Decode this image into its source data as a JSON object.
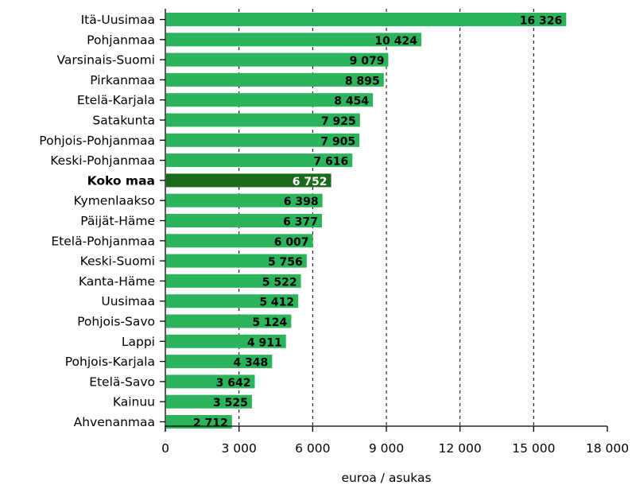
{
  "chart_data": {
    "type": "bar",
    "orientation": "horizontal",
    "categories": [
      "Itä-Uusimaa",
      "Pohjanmaa",
      "Varsinais-Suomi",
      "Pirkanmaa",
      "Etelä-Karjala",
      "Satakunta",
      "Pohjois-Pohjanmaa",
      "Keski-Pohjanmaa",
      "Koko maa",
      "Kymenlaakso",
      "Päijät-Häme",
      "Etelä-Pohjanmaa",
      "Keski-Suomi",
      "Kanta-Häme",
      "Uusimaa",
      "Pohjois-Savo",
      "Lappi",
      "Pohjois-Karjala",
      "Etelä-Savo",
      "Kainuu",
      "Ahvenanmaa"
    ],
    "values": [
      16326,
      10424,
      9079,
      8895,
      8454,
      7925,
      7905,
      7616,
      6752,
      6398,
      6377,
      6007,
      5756,
      5522,
      5412,
      5124,
      4911,
      4348,
      3642,
      3525,
      2712
    ],
    "value_labels": [
      "16 326",
      "10 424",
      "9 079",
      "8 895",
      "8 454",
      "7 925",
      "7 905",
      "7 616",
      "6 752",
      "6 398",
      "6 377",
      "6 007",
      "5 756",
      "5 522",
      "5 412",
      "5 124",
      "4 911",
      "4 348",
      "3 642",
      "3 525",
      "2 712"
    ],
    "highlight_category": "Koko maa",
    "xlim": [
      0,
      18000
    ],
    "ticks": [
      0,
      3000,
      6000,
      9000,
      12000,
      15000,
      18000
    ],
    "tick_labels": [
      "0",
      "3 000",
      "6 000",
      "9 000",
      "12 000",
      "15 000",
      "18 000"
    ],
    "xlabel": "euroa / asukas",
    "grid": "vertical dashed",
    "colors": {
      "bar": "#2cb45c",
      "highlight": "#1a6a1c",
      "grid": "#000000"
    }
  }
}
